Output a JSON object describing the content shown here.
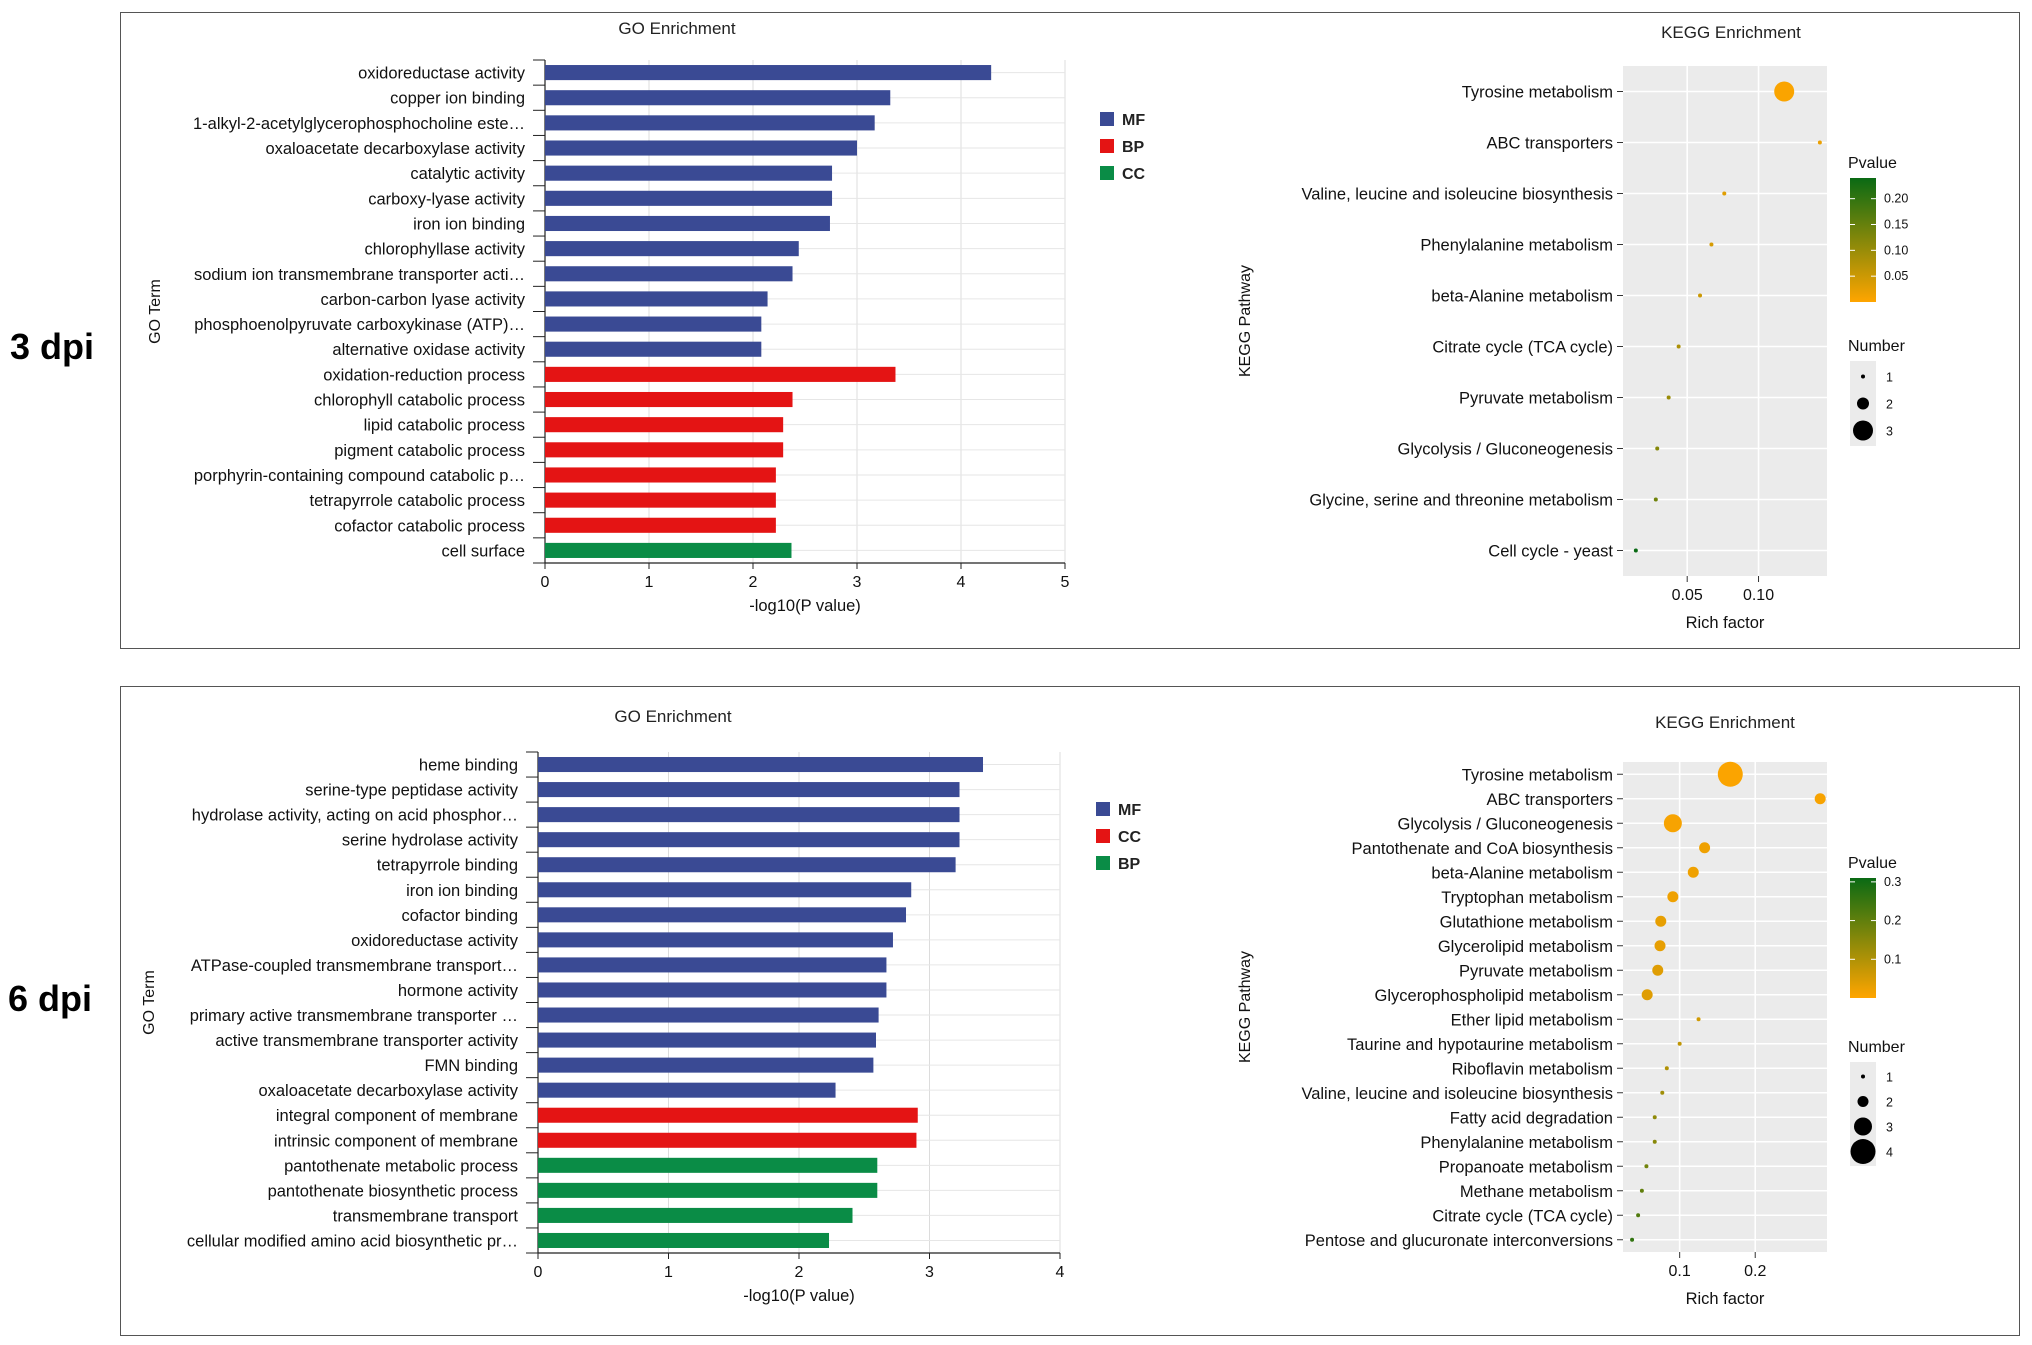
{
  "row_labels": [
    "3 dpi",
    "6 dpi"
  ],
  "chart_data": [
    {
      "type": "bar",
      "orientation": "horizontal",
      "title": "GO Enrichment",
      "xlabel": "-log10(P value)",
      "ylabel": "GO Term",
      "xlim": [
        0,
        5
      ],
      "xticks": [
        0,
        1,
        2,
        3,
        4,
        5
      ],
      "legend": [
        {
          "name": "MF",
          "color": "#3a4a94"
        },
        {
          "name": "BP",
          "color": "#e41414"
        },
        {
          "name": "CC",
          "color": "#0a8c46"
        }
      ],
      "categories": [
        "oxidoreductase activity",
        "copper ion binding",
        "1-alkyl-2-acetylglycerophosphocholine este…",
        "oxaloacetate decarboxylase activity",
        "catalytic activity",
        "carboxy-lyase activity",
        "iron ion binding",
        "chlorophyllase activity",
        "sodium ion transmembrane transporter acti…",
        "carbon-carbon lyase activity",
        "phosphoenolpyruvate carboxykinase (ATP)…",
        "alternative oxidase activity",
        "oxidation-reduction process",
        "chlorophyll catabolic process",
        "lipid catabolic process",
        "pigment catabolic process",
        "porphyrin-containing compound catabolic p…",
        "tetrapyrrole catabolic process",
        "cofactor catabolic process",
        "cell surface"
      ],
      "values": [
        4.29,
        3.32,
        3.17,
        3.0,
        2.76,
        2.76,
        2.74,
        2.44,
        2.38,
        2.14,
        2.08,
        2.08,
        3.37,
        2.38,
        2.29,
        2.29,
        2.22,
        2.22,
        2.22,
        2.37
      ],
      "groups": [
        "MF",
        "MF",
        "MF",
        "MF",
        "MF",
        "MF",
        "MF",
        "MF",
        "MF",
        "MF",
        "MF",
        "MF",
        "BP",
        "BP",
        "BP",
        "BP",
        "BP",
        "BP",
        "BP",
        "CC"
      ]
    },
    {
      "type": "scatter",
      "title": "KEGG Enrichment",
      "xlabel": "Rich factor",
      "ylabel": "KEGG Pathway",
      "xlim": [
        0.005,
        0.148
      ],
      "xticks": [
        0.05,
        0.1
      ],
      "xtick_labels": [
        "0.05",
        "0.10"
      ],
      "categories": [
        "Tyrosine metabolism",
        "ABC transporters",
        "Valine, leucine and isoleucine biosynthesis",
        "Phenylalanine metabolism",
        "beta-Alanine metabolism",
        "Citrate cycle (TCA cycle)",
        "Pyruvate metabolism",
        "Glycolysis / Gluconeogenesis",
        "Glycine, serine and threonine metabolism",
        "Cell cycle - yeast"
      ],
      "rich_factor": [
        0.118,
        0.143,
        0.076,
        0.067,
        0.059,
        0.044,
        0.037,
        0.029,
        0.028,
        0.014
      ],
      "number": [
        3,
        1,
        1,
        1,
        1,
        1,
        1,
        1,
        1,
        1
      ],
      "pvalue": [
        0.005,
        0.02,
        0.03,
        0.04,
        0.05,
        0.08,
        0.1,
        0.12,
        0.14,
        0.24
      ],
      "pvalue_legend": {
        "title": "Pvalue",
        "ticks": [
          0.05,
          0.1,
          0.15,
          0.2
        ],
        "tick_labels": [
          "0.05",
          "0.10",
          "0.15",
          "0.20"
        ],
        "range": [
          0.0,
          0.24
        ]
      },
      "number_legend": {
        "title": "Number",
        "values": [
          1,
          2,
          3
        ]
      },
      "color_low": "#ffa500",
      "color_high": "#0a6a14"
    },
    {
      "type": "bar",
      "orientation": "horizontal",
      "title": "GO Enrichment",
      "xlabel": "-log10(P value)",
      "ylabel": "GO Term",
      "xlim": [
        0,
        4
      ],
      "xticks": [
        0,
        1,
        2,
        3,
        4
      ],
      "legend": [
        {
          "name": "MF",
          "color": "#3a4a94"
        },
        {
          "name": "CC",
          "color": "#e41414"
        },
        {
          "name": "BP",
          "color": "#0a8c46"
        }
      ],
      "categories": [
        "heme binding",
        "serine-type peptidase activity",
        "hydrolase activity, acting on acid phosphor…",
        "serine hydrolase activity",
        "tetrapyrrole binding",
        "iron ion binding",
        "cofactor binding",
        "oxidoreductase activity",
        "ATPase-coupled transmembrane transport…",
        "hormone activity",
        "primary active transmembrane transporter …",
        "active transmembrane transporter activity",
        "FMN binding",
        "oxaloacetate decarboxylase activity",
        "integral component of membrane",
        "intrinsic component of membrane",
        "pantothenate metabolic process",
        "pantothenate biosynthetic process",
        "transmembrane transport",
        "cellular modified amino acid biosynthetic pr…"
      ],
      "values": [
        3.41,
        3.23,
        3.23,
        3.23,
        3.2,
        2.86,
        2.82,
        2.72,
        2.67,
        2.67,
        2.61,
        2.59,
        2.57,
        2.28,
        2.91,
        2.9,
        2.6,
        2.6,
        2.41,
        2.23
      ],
      "groups": [
        "MF",
        "MF",
        "MF",
        "MF",
        "MF",
        "MF",
        "MF",
        "MF",
        "MF",
        "MF",
        "MF",
        "MF",
        "MF",
        "MF",
        "CC",
        "CC",
        "BP",
        "BP",
        "BP",
        "BP"
      ]
    },
    {
      "type": "scatter",
      "title": "KEGG Enrichment",
      "xlabel": "Rich factor",
      "ylabel": "KEGG Pathway",
      "xlim": [
        0.025,
        0.295
      ],
      "xticks": [
        0.1,
        0.2
      ],
      "xtick_labels": [
        "0.1",
        "0.2"
      ],
      "categories": [
        "Tyrosine metabolism",
        "ABC transporters",
        "Glycolysis / Gluconeogenesis",
        "Pantothenate and CoA biosynthesis",
        "beta-Alanine metabolism",
        "Tryptophan metabolism",
        "Glutathione metabolism",
        "Glycerolipid metabolism",
        "Pyruvate metabolism",
        "Glycerophospholipid metabolism",
        "Ether lipid metabolism",
        "Taurine and hypotaurine metabolism",
        "Riboflavin metabolism",
        "Valine, leucine and isoleucine biosynthesis",
        "Fatty acid degradation",
        "Phenylalanine metabolism",
        "Propanoate metabolism",
        "Methane metabolism",
        "Citrate cycle (TCA cycle)",
        "Pentose and glucuronate interconversions"
      ],
      "rich_factor": [
        0.167,
        0.286,
        0.091,
        0.133,
        0.118,
        0.091,
        0.075,
        0.074,
        0.071,
        0.057,
        0.125,
        0.1,
        0.083,
        0.077,
        0.067,
        0.067,
        0.056,
        0.05,
        0.045,
        0.037
      ],
      "number": [
        4,
        2,
        3,
        2,
        2,
        2,
        2,
        2,
        2,
        2,
        1,
        1,
        1,
        1,
        1,
        1,
        1,
        1,
        1,
        1
      ],
      "pvalue": [
        0.005,
        0.01,
        0.01,
        0.02,
        0.02,
        0.02,
        0.03,
        0.03,
        0.04,
        0.04,
        0.06,
        0.08,
        0.1,
        0.12,
        0.14,
        0.15,
        0.18,
        0.2,
        0.22,
        0.26
      ],
      "pvalue_legend": {
        "title": "Pvalue",
        "ticks": [
          0.1,
          0.2,
          0.3
        ],
        "tick_labels": [
          "0.1",
          "0.2",
          "0.3"
        ],
        "range": [
          0.0,
          0.31
        ]
      },
      "number_legend": {
        "title": "Number",
        "values": [
          1,
          2,
          3,
          4
        ]
      },
      "color_low": "#ffa500",
      "color_high": "#0a6a14"
    }
  ]
}
